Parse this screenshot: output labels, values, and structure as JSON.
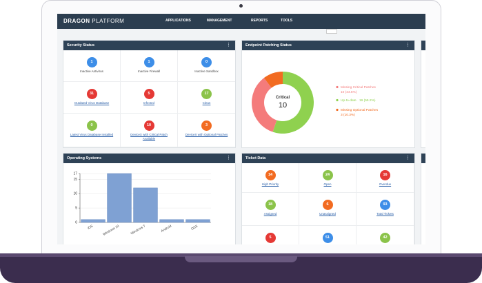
{
  "header": {
    "brand_bold": "DRAGON",
    "brand_light": "PLATFORM",
    "nav": [
      "APPLICATIONS",
      "MANAGEMENT",
      "REPORTS",
      "TOOLS"
    ]
  },
  "security_status": {
    "title": "Security Status",
    "items": [
      {
        "value": 1,
        "label": "Inactive Antivirus",
        "color": "#3d8ee8",
        "link": false
      },
      {
        "value": 1,
        "label": "Inactive Firewall",
        "color": "#3d8ee8",
        "link": false
      },
      {
        "value": 0,
        "label": "Inactive Sandbox",
        "color": "#3d8ee8",
        "link": false
      },
      {
        "value": 31,
        "label": "Outdated Virus Database",
        "color": "#e53935",
        "link": true
      },
      {
        "value": 5,
        "label": "Infected",
        "color": "#e53935",
        "link": true
      },
      {
        "value": 17,
        "label": "Clean",
        "color": "#8bc34a",
        "link": true
      },
      {
        "value": 0,
        "label": "Latest Virus Database Installed",
        "color": "#8bc34a",
        "link": true
      },
      {
        "value": 10,
        "label": "DeviceX with Critical Patch Available",
        "color": "#e53935",
        "link": true
      },
      {
        "value": 3,
        "label": "DeviceX with Optional Patches",
        "color": "#f26b21",
        "link": true
      }
    ]
  },
  "ticket_data": {
    "title": "Ticket Data",
    "items": [
      {
        "value": 14,
        "label": "High Priority",
        "color": "#f26b21"
      },
      {
        "value": 24,
        "label": "Open",
        "color": "#8bc34a"
      },
      {
        "value": 16,
        "label": "Overdue",
        "color": "#e53935"
      },
      {
        "value": 18,
        "label": "Assigned",
        "color": "#8bc34a"
      },
      {
        "value": 6,
        "label": "Unassigned",
        "color": "#f26b21"
      },
      {
        "value": 93,
        "label": "Total Tickets",
        "color": "#3d8ee8"
      },
      {
        "value": 5,
        "color": "#e53935"
      },
      {
        "value": 51,
        "color": "#3d8ee8"
      },
      {
        "value": 42,
        "color": "#8bc34a"
      }
    ]
  },
  "chart_data": [
    {
      "type": "donut",
      "title": "Endpoint Patching Status",
      "center_label": "Critical",
      "center_value": 10,
      "categories": [
        "Missing Critical Patches",
        "Up-to-date",
        "Missing Optional Patches"
      ],
      "values": [
        10,
        16,
        3
      ],
      "value_labels": [
        "10 (34.5%)",
        "16 (55.2%)",
        "3 (10.3%)"
      ],
      "colors": [
        "#f47b7b",
        "#8fd14f",
        "#f26b21"
      ]
    },
    {
      "type": "bar",
      "title": "Operating Systems",
      "categories": [
        "iOS",
        "Windows 10",
        "Windows 7",
        "Android",
        "OSX"
      ],
      "values": [
        1,
        17,
        12,
        1,
        1
      ],
      "color": "#7fa1d3",
      "ylim": [
        0,
        17
      ],
      "yticks": [
        0,
        5,
        10,
        15,
        17
      ],
      "grid": true
    }
  ]
}
